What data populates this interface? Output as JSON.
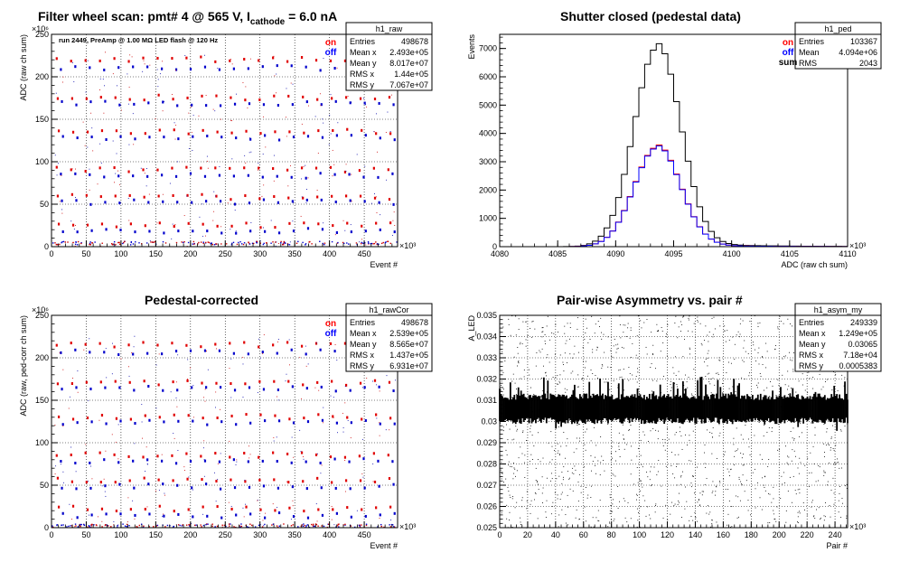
{
  "pads": [
    {
      "id": "raw",
      "title": {
        "pre": "Filter wheel scan: pmt#   4 @   565 V, I",
        "sub": "cathode",
        "post": "  = 6.0 nA"
      },
      "stats": {
        "name": "h1_raw",
        "rows": [
          [
            "Entries",
            "498678"
          ],
          [
            "Mean x",
            "2.493e+05"
          ],
          [
            "Mean y",
            "8.017e+07"
          ],
          [
            "RMS x",
            "1.44e+05"
          ],
          [
            "RMS y",
            "7.067e+07"
          ]
        ]
      },
      "legend": [
        {
          "label": "on",
          "color": "#ff0000"
        },
        {
          "label": "off",
          "color": "#0000ff"
        }
      ],
      "annotation": "run 2449, PreAmp @ 1.00 MΩ   LED flash @  120 Hz",
      "chart_data": {
        "type": "scatter",
        "xlabel": "Event #",
        "ylabel": "ADC (raw ch sum)",
        "xlim": [
          0,
          498
        ],
        "ylim": [
          0,
          250
        ],
        "xticks": [
          0,
          50,
          100,
          150,
          200,
          250,
          300,
          350,
          400,
          450
        ],
        "yticks": [
          0,
          50,
          100,
          150,
          200,
          250
        ],
        "xexp": "×10³",
        "yexp": "×10⁶",
        "grid": true,
        "levels_on": [
          220,
          175,
          135,
          90,
          58,
          25
        ],
        "levels_off": [
          210,
          168,
          128,
          83,
          52,
          18
        ],
        "baseline": 3
      }
    },
    {
      "id": "ped",
      "title": {
        "pre": "Shutter closed (pedestal data)",
        "sub": "",
        "post": ""
      },
      "stats": {
        "name": "h1_ped",
        "rows": [
          [
            "Entries",
            "103367"
          ],
          [
            "Mean",
            "4.094e+06"
          ],
          [
            "RMS",
            "2043"
          ]
        ]
      },
      "legend": [
        {
          "label": "on",
          "color": "#ff0000"
        },
        {
          "label": "off",
          "color": "#0000ff"
        },
        {
          "label": "sum",
          "color": "#000000"
        }
      ],
      "annotation": "",
      "chart_data": {
        "type": "line",
        "xlabel": "ADC (raw ch sum)",
        "ylabel": "Events",
        "xlim": [
          4080,
          4110
        ],
        "ylim": [
          0,
          7500
        ],
        "xticks": [
          4080,
          4085,
          4090,
          4095,
          4100,
          4105,
          4110
        ],
        "yticks": [
          0,
          1000,
          2000,
          3000,
          4000,
          5000,
          6000,
          7000
        ],
        "xexp": "×10³",
        "yexp": "",
        "grid": false,
        "peak": {
          "center": 4093.6,
          "sum": 7050,
          "on": 3530,
          "off": 3500,
          "sigma": 2.0
        }
      }
    },
    {
      "id": "rawCor",
      "title": {
        "pre": "Pedestal-corrected",
        "sub": "",
        "post": ""
      },
      "stats": {
        "name": "h1_rawCor",
        "rows": [
          [
            "Entries",
            "498678"
          ],
          [
            "Mean x",
            "2.539e+05"
          ],
          [
            "Mean y",
            "8.565e+07"
          ],
          [
            "RMS x",
            "1.437e+05"
          ],
          [
            "RMS y",
            "6.931e+07"
          ]
        ]
      },
      "legend": [
        {
          "label": "on",
          "color": "#ff0000"
        },
        {
          "label": "off",
          "color": "#0000ff"
        }
      ],
      "annotation": "",
      "chart_data": {
        "type": "scatter",
        "xlabel": "Event #",
        "ylabel": "ADC (raw, ped-corr ch sum)",
        "xlim": [
          0,
          498
        ],
        "ylim": [
          0,
          250
        ],
        "xticks": [
          0,
          50,
          100,
          150,
          200,
          250,
          300,
          350,
          400,
          450
        ],
        "yticks": [
          0,
          50,
          100,
          150,
          200,
          250
        ],
        "xexp": "×10³",
        "yexp": "×10⁶",
        "grid": true,
        "levels_on": [
          215,
          170,
          130,
          85,
          55,
          22
        ],
        "levels_off": [
          206,
          163,
          123,
          78,
          48,
          14
        ],
        "baseline": 1
      }
    },
    {
      "id": "asym",
      "title": {
        "pre": "Pair-wise Asymmetry vs. pair #",
        "sub": "",
        "post": ""
      },
      "stats": {
        "name": "h1_asym_my",
        "rows": [
          [
            "Entries",
            "249339"
          ],
          [
            "Mean x",
            "1.249e+05"
          ],
          [
            "Mean y",
            "0.03065"
          ],
          [
            "RMS x",
            "7.18e+04"
          ],
          [
            "RMS y",
            "0.0005383"
          ]
        ]
      },
      "legend": [],
      "annotation": "",
      "chart_data": {
        "type": "scatter",
        "xlabel": "Pair #",
        "ylabel": "A_LED",
        "xlim": [
          0,
          249
        ],
        "ylim": [
          0.025,
          0.035
        ],
        "xticks": [
          0,
          20,
          40,
          60,
          80,
          100,
          120,
          140,
          160,
          180,
          200,
          220,
          240
        ],
        "yticks": [
          0.025,
          0.026,
          0.027,
          0.028,
          0.029,
          0.03,
          0.031,
          0.032,
          0.033,
          0.034,
          0.035
        ],
        "xexp": "×10³",
        "yexp": "",
        "grid": true,
        "center": 0.0306,
        "spread": 0.0006
      }
    }
  ]
}
